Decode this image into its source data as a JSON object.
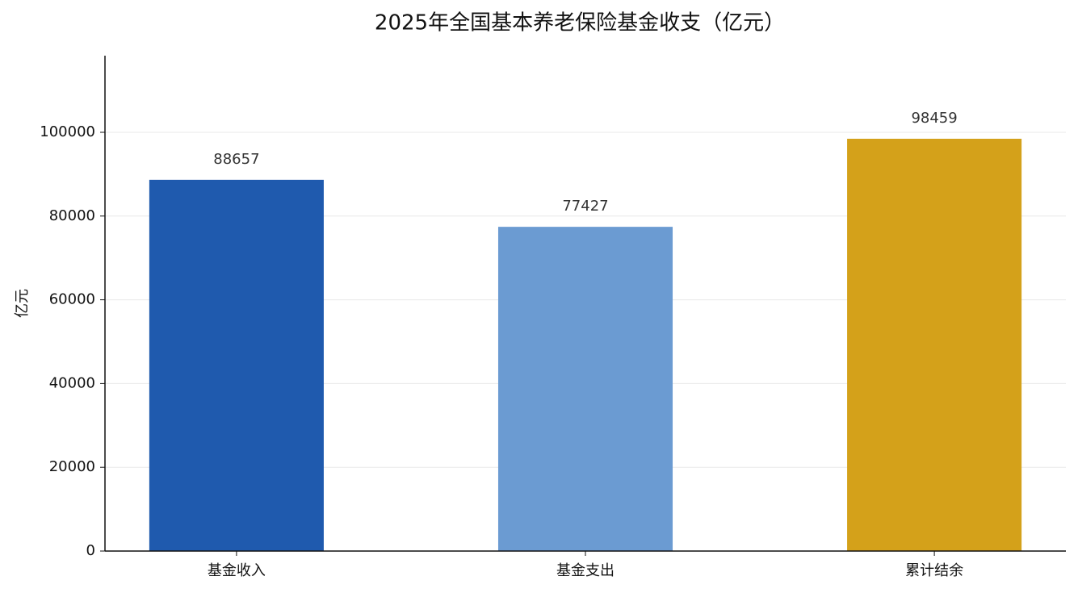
{
  "chart_data": {
    "type": "bar",
    "title": "2025年全国基本养老保险基金收支（亿元）",
    "y_label": "亿元",
    "categories": [
      "基金收入",
      "基金支出",
      "累计结余"
    ],
    "values": [
      88657,
      77427,
      98459
    ],
    "colors": [
      "#1f5aae",
      "#6b9bd2",
      "#d4a11a"
    ],
    "ylim": [
      0,
      118300
    ],
    "yticks": [
      0,
      20000,
      40000,
      60000,
      80000,
      100000
    ],
    "grid": true
  }
}
